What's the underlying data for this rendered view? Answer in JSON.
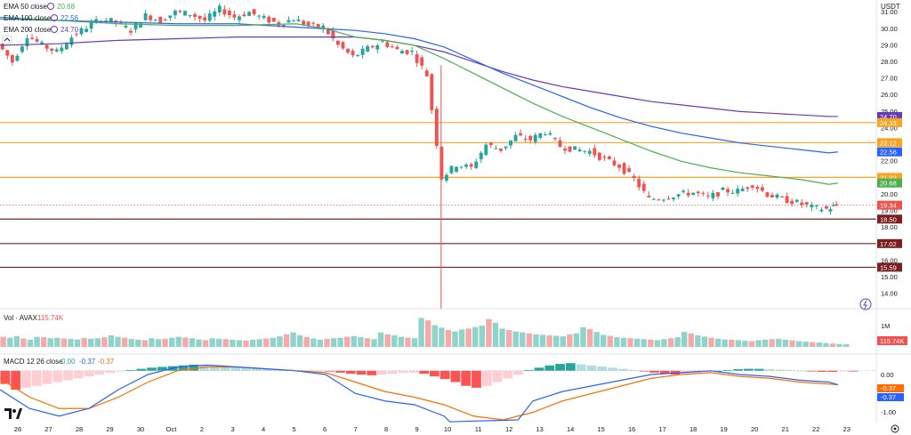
{
  "currency": "USDT",
  "colors": {
    "up": "#26a69a",
    "down": "#ef5350",
    "ema50": "#4caf50",
    "ema100": "#2962ff",
    "ema200": "#673ab7",
    "hline_orange": "#f5a623",
    "hline_dark": "#7b1f1f",
    "vol_up": "#8fd3cb",
    "vol_down": "#f7a9a8",
    "macd_line": "#2962ff",
    "signal_line": "#ff6d00"
  },
  "legend": {
    "ema50": {
      "label": "EMA 50 close",
      "value": "20.68"
    },
    "ema100": {
      "label": "EMA 100 close",
      "value": "22.56"
    },
    "ema200": {
      "label": "EMA 200 close",
      "value": "24.70"
    },
    "vol": {
      "label": "Vol · AVAX",
      "value": "115.74K"
    },
    "macd": {
      "label": "MACD 12 26 close",
      "v1": "0.00",
      "v2": "-0.37",
      "v3": "-0.37"
    }
  },
  "axis_labels": {
    "macd_zero": "0.00",
    "macd_neg1": "-1.00",
    "vol_1m": "1M",
    "vol_now": "115.74K",
    "macd_sig": "-0.37",
    "macd_val": "-0.37"
  },
  "chart_data": {
    "type": "candlestick",
    "title": "",
    "ylim": [
      14,
      31.2
    ],
    "y_ticks": [
      "31.00",
      "30.00",
      "29.00",
      "28.00",
      "27.00",
      "26.00",
      "25.00",
      "24.00",
      "23.00",
      "22.00",
      "21.00",
      "20.00",
      "19.00",
      "18.00",
      "17.00",
      "16.00",
      "15.00",
      "14.00"
    ],
    "x_ticks": [
      "26",
      "27",
      "28",
      "29",
      "30",
      "Oct",
      "2",
      "3",
      "4",
      "5",
      "6",
      "7",
      "8",
      "9",
      "10",
      "11",
      "12",
      "13",
      "14",
      "15",
      "16",
      "17",
      "18",
      "19",
      "20",
      "21",
      "22",
      "23"
    ],
    "price_labels": [
      {
        "value": 24.7,
        "text": "24.70",
        "color": "#673ab7"
      },
      {
        "value": 24.33,
        "text": "24.33",
        "color": "#f5a623"
      },
      {
        "value": 23.12,
        "text": "23.12",
        "color": "#f5a623"
      },
      {
        "value": 22.56,
        "text": "22.56",
        "color": "#2962ff"
      },
      {
        "value": 21.02,
        "text": "21.02",
        "color": "#f5a623"
      },
      {
        "value": 20.68,
        "text": "20.68",
        "color": "#4caf50"
      },
      {
        "value": 19.34,
        "text": "19.34",
        "color": "#ef5350"
      },
      {
        "value": 18.5,
        "text": "18.50",
        "color": "#7b1f1f"
      },
      {
        "value": 17.02,
        "text": "17.02",
        "color": "#7b1f1f"
      },
      {
        "value": 15.59,
        "text": "15.59",
        "color": "#7b1f1f"
      }
    ],
    "horizontal_levels": [
      {
        "value": 24.33,
        "color": "#f5a623"
      },
      {
        "value": 23.12,
        "color": "#f5a623"
      },
      {
        "value": 21.02,
        "color": "#f5a623"
      },
      {
        "value": 18.5,
        "color": "#7b1f1f"
      },
      {
        "value": 17.02,
        "color": "#7b1f1f"
      },
      {
        "value": 15.59,
        "color": "#7b1f1f"
      }
    ],
    "current_price": 19.34,
    "price_series": [
      [
        26,
        29.1
      ],
      [
        26.5,
        28.0
      ],
      [
        27,
        29.6
      ],
      [
        27.5,
        29.0
      ],
      [
        28,
        28.6
      ],
      [
        28.5,
        29.5
      ],
      [
        29,
        30.1
      ],
      [
        29.5,
        30.6
      ],
      [
        30,
        30.4
      ],
      [
        30.5,
        29.9
      ],
      [
        31,
        30.8
      ],
      [
        31.5,
        30.5
      ],
      [
        32,
        31.0
      ],
      [
        32.5,
        30.9
      ],
      [
        33,
        30.5
      ],
      [
        33.5,
        31.2
      ],
      [
        34,
        30.7
      ],
      [
        34.5,
        31.0
      ],
      [
        35,
        30.6
      ],
      [
        35.5,
        30.3
      ],
      [
        36,
        30.6
      ],
      [
        36.5,
        30.2
      ],
      [
        37,
        30.1
      ],
      [
        37.5,
        29.0
      ],
      [
        38,
        28.3
      ],
      [
        38.5,
        28.8
      ],
      [
        39,
        29.2
      ],
      [
        39.5,
        28.7
      ],
      [
        40,
        28.6
      ],
      [
        40.5,
        27.2
      ],
      [
        41,
        21.0
      ],
      [
        41.5,
        21.8
      ],
      [
        42,
        21.6
      ],
      [
        42.5,
        23.0
      ],
      [
        43,
        22.7
      ],
      [
        43.5,
        23.5
      ],
      [
        44,
        23.3
      ],
      [
        44.5,
        23.8
      ],
      [
        45,
        22.9
      ],
      [
        45.5,
        22.7
      ],
      [
        46,
        22.6
      ],
      [
        46.5,
        22.1
      ],
      [
        47,
        21.7
      ],
      [
        47.5,
        20.9
      ],
      [
        48,
        19.7
      ],
      [
        48.5,
        19.8
      ],
      [
        49,
        20.0
      ],
      [
        49.5,
        20.1
      ],
      [
        50,
        19.8
      ],
      [
        50.5,
        20.2
      ],
      [
        51,
        20.2
      ],
      [
        51.5,
        20.6
      ],
      [
        52,
        20.0
      ],
      [
        52.5,
        19.7
      ],
      [
        53,
        19.5
      ],
      [
        53.5,
        19.2
      ],
      [
        54,
        19.1
      ],
      [
        54.3,
        19.34
      ]
    ],
    "ema50": [
      [
        26,
        30.7
      ],
      [
        28,
        30.5
      ],
      [
        30,
        30.3
      ],
      [
        32,
        30.2
      ],
      [
        34,
        30.2
      ],
      [
        36,
        30.3
      ],
      [
        37,
        30.0
      ],
      [
        38,
        29.5
      ],
      [
        39,
        29.3
      ],
      [
        40,
        29.0
      ],
      [
        41,
        28.2
      ],
      [
        42,
        27.3
      ],
      [
        43,
        26.4
      ],
      [
        44,
        25.5
      ],
      [
        45,
        24.7
      ],
      [
        46,
        24.0
      ],
      [
        47,
        23.3
      ],
      [
        48,
        22.6
      ],
      [
        49,
        22.0
      ],
      [
        50,
        21.6
      ],
      [
        51,
        21.3
      ],
      [
        52,
        21.1
      ],
      [
        53,
        20.9
      ],
      [
        54,
        20.6
      ],
      [
        54.3,
        20.68
      ]
    ],
    "ema100": [
      [
        26,
        30.6
      ],
      [
        28,
        30.5
      ],
      [
        30,
        30.4
      ],
      [
        32,
        30.3
      ],
      [
        34,
        30.3
      ],
      [
        36,
        30.1
      ],
      [
        38,
        29.9
      ],
      [
        39,
        29.7
      ],
      [
        40,
        29.4
      ],
      [
        41,
        28.9
      ],
      [
        42,
        28.1
      ],
      [
        43,
        27.3
      ],
      [
        44,
        26.6
      ],
      [
        45,
        25.9
      ],
      [
        46,
        25.2
      ],
      [
        47,
        24.6
      ],
      [
        48,
        24.1
      ],
      [
        49,
        23.7
      ],
      [
        50,
        23.4
      ],
      [
        51,
        23.1
      ],
      [
        52,
        22.9
      ],
      [
        53,
        22.7
      ],
      [
        54,
        22.5
      ],
      [
        54.3,
        22.56
      ]
    ],
    "ema200": [
      [
        26,
        29.0
      ],
      [
        28,
        29.1
      ],
      [
        30,
        29.3
      ],
      [
        32,
        29.4
      ],
      [
        34,
        29.5
      ],
      [
        36,
        29.5
      ],
      [
        38,
        29.5
      ],
      [
        39,
        29.3
      ],
      [
        40,
        29.0
      ],
      [
        41,
        28.6
      ],
      [
        42,
        28.0
      ],
      [
        43,
        27.4
      ],
      [
        44,
        26.9
      ],
      [
        45,
        26.5
      ],
      [
        46,
        26.2
      ],
      [
        47,
        25.9
      ],
      [
        48,
        25.6
      ],
      [
        49,
        25.4
      ],
      [
        50,
        25.2
      ],
      [
        51,
        25.0
      ],
      [
        52,
        24.9
      ],
      [
        53,
        24.8
      ],
      [
        54,
        24.7
      ],
      [
        54.3,
        24.7
      ]
    ],
    "volume": {
      "ylim": [
        0,
        1400000
      ],
      "values": [
        420000,
        380000,
        450000,
        350000,
        300000,
        420000,
        400000,
        360000,
        380000,
        350000,
        330000,
        310000,
        370000,
        340000,
        360000,
        400000,
        480000,
        420000,
        380000,
        330000,
        300000,
        280000,
        360000,
        320000,
        340000,
        380000,
        420000,
        390000,
        360000,
        310000,
        280000,
        360000,
        340000,
        320000,
        300000,
        280000,
        260000,
        300000,
        320000,
        350000,
        380000,
        440000,
        520000,
        600000,
        480000,
        410000,
        350000,
        300000,
        330000,
        360000,
        380000,
        420000,
        450000,
        410000,
        360000,
        320000,
        600000,
        520000,
        480000,
        420000,
        380000,
        360000,
        1200000,
        1100000,
        900000,
        800000,
        700000,
        640000,
        720000,
        760000,
        820000,
        880000,
        1150000,
        1000000,
        760000,
        700000,
        640000,
        600000,
        560000,
        520000,
        500000,
        480000,
        460000,
        440000,
        520000,
        560000,
        820000,
        740000,
        620000,
        500000,
        450000,
        400000,
        380000,
        360000,
        340000,
        320000,
        300000,
        280000,
        320000,
        360000,
        400000,
        620000,
        560000,
        480000,
        430000,
        380000,
        340000,
        310000,
        300000,
        280000,
        260000,
        240000,
        280000,
        300000,
        320000,
        340000,
        300000,
        270000,
        240000,
        220000,
        200000,
        180000,
        160000,
        140000,
        120000,
        115740
      ]
    },
    "macd": {
      "ylim": [
        -1.3,
        0.3
      ],
      "histogram": [
        -0.35,
        -0.5,
        -0.45,
        -0.4,
        -0.35,
        -0.3,
        -0.25,
        -0.2,
        -0.15,
        -0.1,
        -0.06,
        -0.02,
        0.02,
        0.05,
        0.08,
        0.1,
        0.12,
        0.14,
        0.16,
        0.15,
        0.13,
        0.12,
        0.1,
        0.08,
        0.06,
        0.05,
        0.04,
        0.03,
        0.02,
        0.01,
        0.0,
        -0.02,
        -0.05,
        -0.08,
        -0.1,
        -0.12,
        -0.1,
        -0.08,
        -0.06,
        -0.05,
        -0.08,
        -0.15,
        -0.22,
        -0.3,
        -0.4,
        -0.45,
        -0.4,
        -0.3,
        -0.2,
        -0.1,
        0.02,
        0.08,
        0.14,
        0.18,
        0.2,
        0.17,
        0.14,
        0.11,
        0.08,
        0.05,
        0.02,
        -0.02,
        -0.05,
        -0.08,
        -0.1,
        -0.09,
        -0.06,
        -0.03,
        0.0,
        0.02,
        0.04,
        0.05,
        0.05,
        0.04,
        0.03,
        0.02,
        0.0,
        -0.02,
        -0.03,
        -0.03,
        -0.02,
        -0.02
      ],
      "macd_line": [
        [
          26,
          -0.5
        ],
        [
          27,
          -1.0
        ],
        [
          28,
          -1.2
        ],
        [
          29,
          -1.0
        ],
        [
          30,
          -0.5
        ],
        [
          31,
          -0.1
        ],
        [
          32,
          0.1
        ],
        [
          33,
          0.15
        ],
        [
          34,
          0.1
        ],
        [
          35,
          0.05
        ],
        [
          36,
          0.0
        ],
        [
          37,
          -0.1
        ],
        [
          38,
          -0.6
        ],
        [
          39,
          -0.8
        ],
        [
          40,
          -0.9
        ],
        [
          41,
          -1.2
        ],
        [
          41.2,
          -1.35
        ],
        [
          43.5,
          -1.3
        ],
        [
          44,
          -0.8
        ],
        [
          45,
          -0.55
        ],
        [
          46,
          -0.4
        ],
        [
          47,
          -0.25
        ],
        [
          48,
          -0.1
        ],
        [
          49,
          -0.05
        ],
        [
          50,
          0.0
        ],
        [
          51,
          -0.1
        ],
        [
          52,
          -0.15
        ],
        [
          53,
          -0.25
        ],
        [
          54,
          -0.3
        ],
        [
          54.3,
          -0.37
        ]
      ],
      "signal_line": [
        [
          26,
          -0.2
        ],
        [
          27,
          -0.7
        ],
        [
          28,
          -1.0
        ],
        [
          29,
          -1.0
        ],
        [
          30,
          -0.7
        ],
        [
          31,
          -0.3
        ],
        [
          32,
          0.0
        ],
        [
          33,
          0.1
        ],
        [
          34,
          0.1
        ],
        [
          35,
          0.05
        ],
        [
          36,
          0.0
        ],
        [
          37,
          -0.05
        ],
        [
          38,
          -0.3
        ],
        [
          39,
          -0.55
        ],
        [
          40,
          -0.7
        ],
        [
          41,
          -0.9
        ],
        [
          42,
          -1.2
        ],
        [
          43,
          -1.3
        ],
        [
          44,
          -1.1
        ],
        [
          45,
          -0.8
        ],
        [
          46,
          -0.6
        ],
        [
          47,
          -0.4
        ],
        [
          48,
          -0.2
        ],
        [
          49,
          -0.1
        ],
        [
          50,
          -0.05
        ],
        [
          51,
          -0.15
        ],
        [
          52,
          -0.2
        ],
        [
          53,
          -0.3
        ],
        [
          54,
          -0.35
        ],
        [
          54.3,
          -0.37
        ]
      ]
    }
  }
}
